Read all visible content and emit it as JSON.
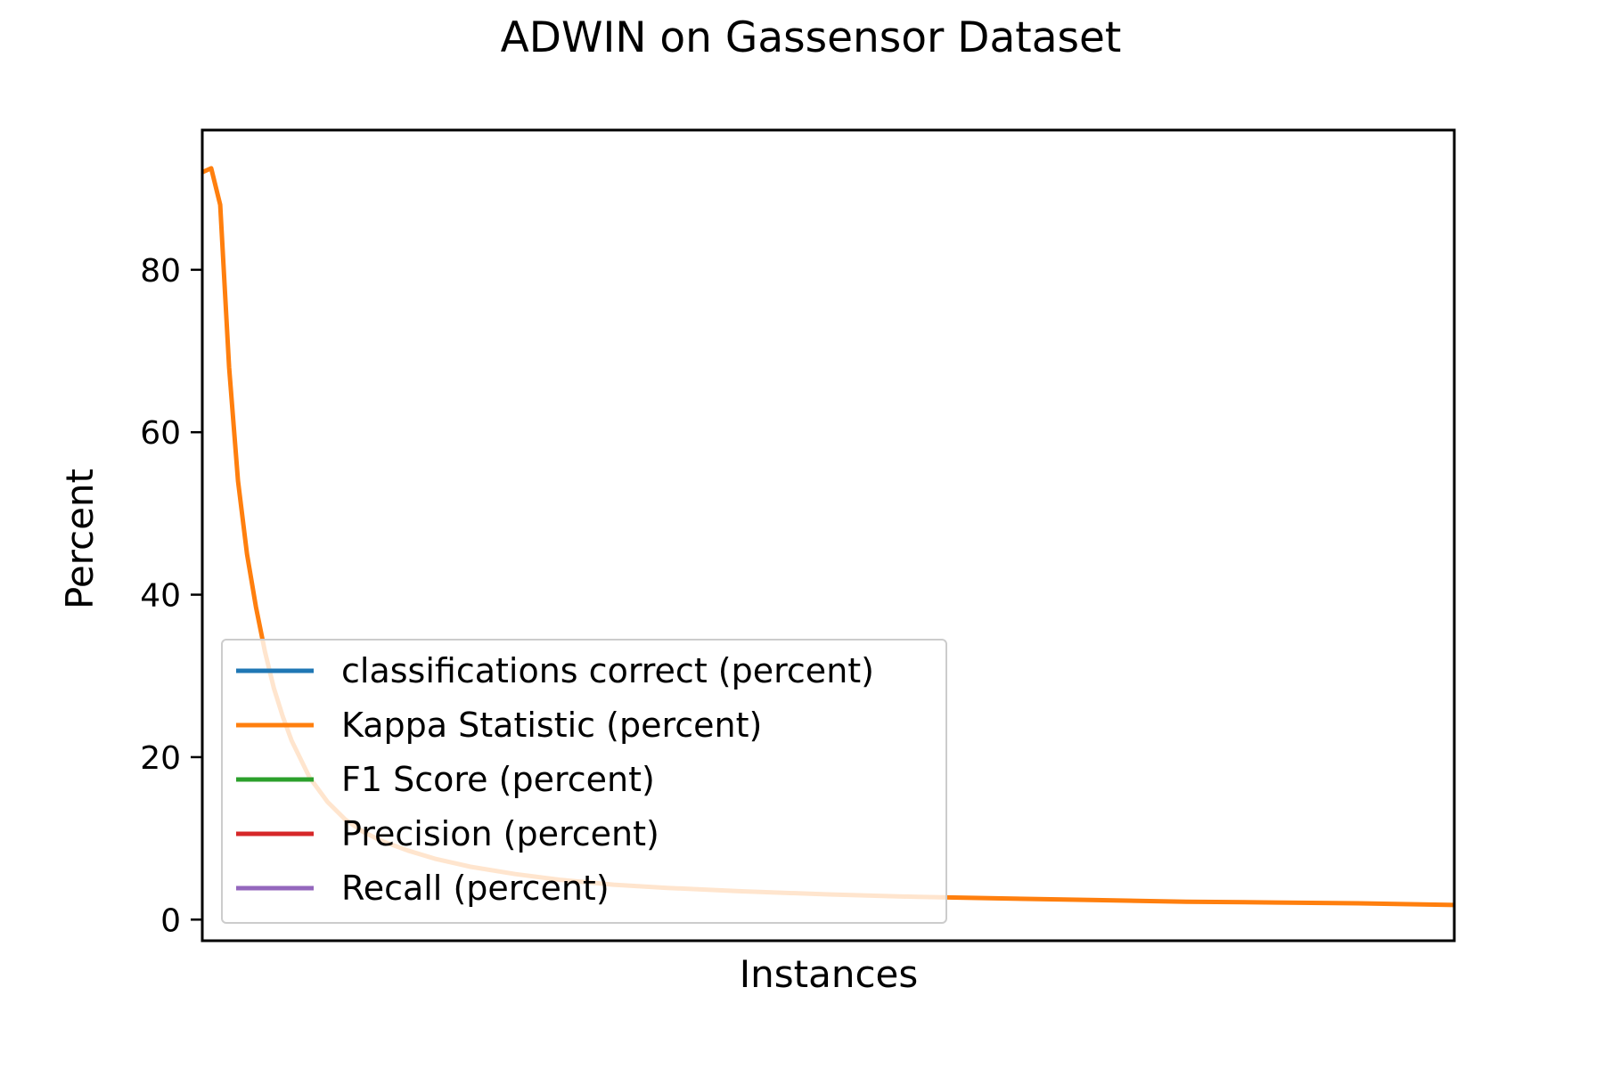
{
  "chart_data": {
    "type": "line",
    "title": "ADWIN on Gassensor Dataset",
    "xlabel": "Instances",
    "ylabel": "Percent",
    "ylim": [
      -2.6,
      97.2
    ],
    "xlim": [
      0,
      140
    ],
    "yticks": [
      "0",
      "20",
      "40",
      "60",
      "80"
    ],
    "ytick_values": [
      0,
      20,
      40,
      60,
      80
    ],
    "show_x_ticks": false,
    "grid": false,
    "legend_position": "lower-left",
    "series": [
      {
        "name": "classifications correct (percent)",
        "color": "#1f77b4",
        "x": [],
        "y": []
      },
      {
        "name": "Kappa Statistic (percent)",
        "color": "#ff7f0e",
        "x": [
          0,
          1,
          2,
          3,
          4,
          5,
          6,
          7,
          8,
          9,
          10,
          12,
          14,
          16,
          18,
          20,
          23,
          26,
          30,
          35,
          40,
          46,
          52,
          60,
          70,
          80,
          90,
          100,
          110,
          120,
          130,
          140
        ],
        "y": [
          92,
          92.5,
          88,
          68,
          54,
          45,
          38.5,
          33,
          28.5,
          25,
          22,
          17.5,
          14.5,
          12.3,
          10.8,
          9.7,
          8.5,
          7.5,
          6.5,
          5.6,
          4.9,
          4.3,
          3.9,
          3.5,
          3.1,
          2.8,
          2.6,
          2.4,
          2.2,
          2.1,
          2.0,
          1.8
        ]
      },
      {
        "name": "F1 Score (percent)",
        "color": "#2ca02c",
        "x": [],
        "y": []
      },
      {
        "name": "Precision (percent)",
        "color": "#d62728",
        "x": [],
        "y": []
      },
      {
        "name": "Recall (percent)",
        "color": "#9467bd",
        "x": [],
        "y": []
      }
    ]
  }
}
